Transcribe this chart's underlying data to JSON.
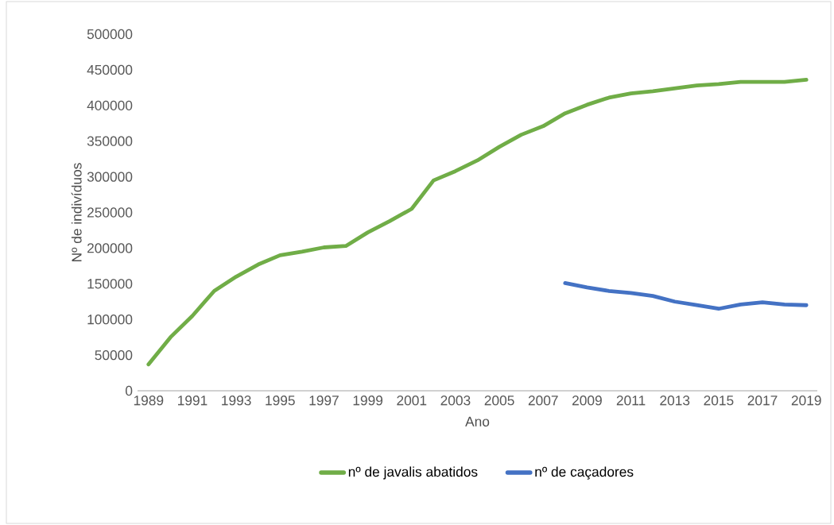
{
  "chart_data": {
    "type": "line",
    "xlabel": "Ano",
    "ylabel": "Nº de indivíduos",
    "xlim": [
      1988.5,
      2019.5
    ],
    "xticks": [
      1989,
      1991,
      1993,
      1995,
      1997,
      1999,
      2001,
      2003,
      2005,
      2007,
      2009,
      2011,
      2013,
      2015,
      2017,
      2019
    ],
    "ylim": [
      0,
      500000
    ],
    "yticks": [
      0,
      50000,
      100000,
      150000,
      200000,
      250000,
      300000,
      350000,
      400000,
      450000,
      500000
    ],
    "legend": "bottom",
    "series": [
      {
        "name": "nº de javalis abatidos",
        "color": "#70ad47",
        "x": [
          1989,
          1990,
          1991,
          1992,
          1993,
          1994,
          1995,
          1996,
          1997,
          1998,
          1999,
          2000,
          2001,
          2002,
          2003,
          2004,
          2005,
          2006,
          2007,
          2008,
          2009,
          2010,
          2011,
          2012,
          2013,
          2014,
          2015,
          2016,
          2017,
          2018,
          2019
        ],
        "values": [
          37000,
          75000,
          105000,
          140000,
          160000,
          177000,
          190000,
          195000,
          201000,
          203000,
          222000,
          238000,
          255000,
          295000,
          308000,
          323000,
          342000,
          359000,
          371000,
          389000,
          401000,
          411000,
          417000,
          420000,
          424000,
          428000,
          430000,
          433000,
          433000,
          433000,
          436000
        ]
      },
      {
        "name": "nº de caçadores",
        "color": "#4472c4",
        "x": [
          2008,
          2009,
          2010,
          2011,
          2012,
          2013,
          2014,
          2015,
          2016,
          2017,
          2018,
          2019
        ],
        "values": [
          151000,
          145000,
          140000,
          137000,
          133000,
          125000,
          120000,
          115000,
          121000,
          124000,
          121000,
          120000
        ]
      }
    ]
  }
}
